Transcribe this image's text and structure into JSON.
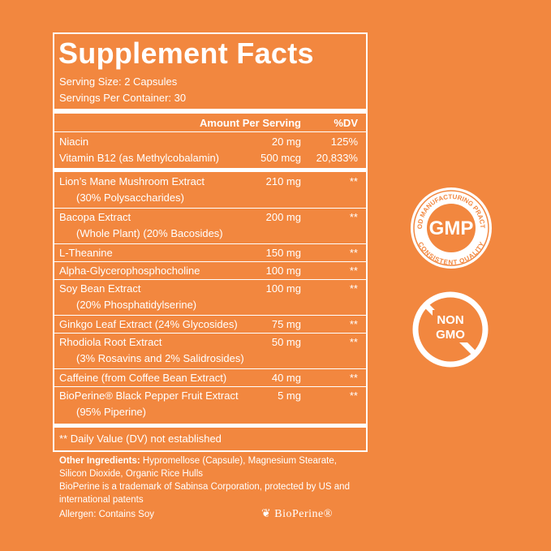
{
  "title": "Supplement Facts",
  "serving_size": "Serving Size: 2 Capsules",
  "servings_per_container": "Servings Per Container: 30",
  "header": {
    "amount": "Amount Per Serving",
    "dv": "%DV"
  },
  "vitamins": [
    {
      "name": "Niacin",
      "amount": "20 mg",
      "dv": "125%"
    },
    {
      "name": "Vitamin B12 (as Methylcobalamin)",
      "amount": "500 mcg",
      "dv": "20,833%"
    }
  ],
  "ingredients": [
    {
      "name": "Lion’s Mane Mushroom  Extract",
      "sub": "(30% Polysaccharides)",
      "amount": "210 mg",
      "dv": "**"
    },
    {
      "name": "Bacopa Extract",
      "sub": "(Whole Plant) (20% Bacosides)",
      "amount": "200 mg",
      "dv": "**"
    },
    {
      "name": "L-Theanine",
      "amount": "150 mg",
      "dv": "**"
    },
    {
      "name": "Alpha-Glycerophosphocholine",
      "amount": "100 mg",
      "dv": "**"
    },
    {
      "name": "Soy Bean Extract",
      "sub": "(20% Phosphatidylserine)",
      "amount": "100 mg",
      "dv": "**"
    },
    {
      "name": "Ginkgo Leaf Extract (24% Glycosides)",
      "amount": "75 mg",
      "dv": "**"
    },
    {
      "name": "Rhodiola Root Extract",
      "sub": "(3% Rosavins and 2% Salidrosides)",
      "amount": "50 mg",
      "dv": "**"
    },
    {
      "name": "Caffeine (from Coffee Bean Extract)",
      "amount": "40 mg",
      "dv": "**"
    },
    {
      "name": "BioPerine® Black Pepper Fruit Extract",
      "sub": "(95% Piperine)",
      "amount": "5 mg",
      "dv": "**"
    }
  ],
  "footnote": "** Daily Value (DV) not established",
  "other_ingredients": {
    "label": "Other Ingredients:",
    "line1": "Hypromellose (Capsule), Magnesium Stearate,",
    "line2": "Silicon Dioxide, Organic Rice Hulls"
  },
  "trademark": {
    "line1": "BioPerine is a trademark of Sabinsa Corporation, protected by US and",
    "line2": "international patents"
  },
  "allergen": "Allergen: Contains Soy",
  "logo": "BioPerine®",
  "badges": {
    "gmp": {
      "top": "GOOD MANUFACTURING PRACTICE",
      "center": "GMP",
      "bottom": "CONSISTENT QUALITY"
    },
    "non_gmo": {
      "line1": "NON",
      "line2": "GMO"
    }
  }
}
